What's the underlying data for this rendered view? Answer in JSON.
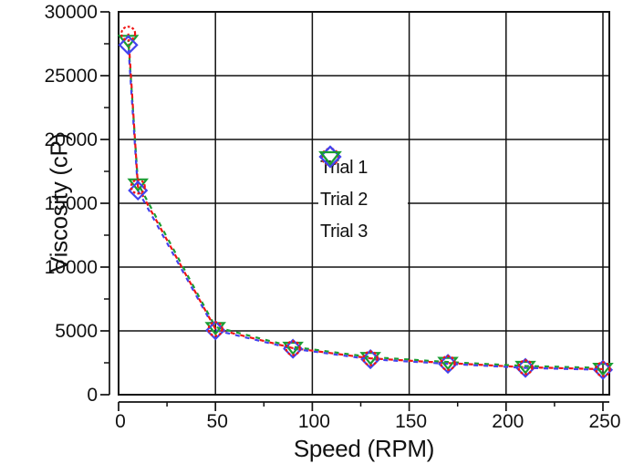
{
  "chart_data": {
    "type": "scatter",
    "title": "",
    "xlabel": "Speed (RPM)",
    "ylabel": "Viscosity (cP)",
    "x": [
      5,
      10,
      50,
      90,
      130,
      170,
      210,
      250
    ],
    "series": [
      {
        "name": "Trial 1",
        "marker": "circle",
        "color": "#f01414",
        "values": [
          28300,
          16300,
          5150,
          3650,
          2850,
          2480,
          2150,
          2000
        ]
      },
      {
        "name": "Trial 2",
        "marker": "diamond",
        "color": "#4343ee",
        "values": [
          27400,
          16000,
          5050,
          3600,
          2780,
          2420,
          2100,
          1950
        ]
      },
      {
        "name": "Trial 3",
        "marker": "triangle-down",
        "color": "#1a9e33",
        "values": [
          27800,
          16550,
          5300,
          3750,
          2950,
          2560,
          2250,
          2100
        ]
      }
    ],
    "xlim": [
      0,
      253
    ],
    "ylim": [
      0,
      30000
    ],
    "x_major_ticks": [
      0,
      50,
      100,
      150,
      200,
      250
    ],
    "x_minor_ticks": [
      25,
      75,
      125,
      175,
      225
    ],
    "y_major_ticks": [
      0,
      5000,
      10000,
      15000,
      20000,
      25000,
      30000
    ],
    "y_minor_ticks": [
      2500,
      7500,
      12500,
      17500,
      22500,
      27500
    ],
    "grid": true,
    "line_style": "dashed",
    "legend_position": "inside-center"
  },
  "legend": {
    "items": [
      {
        "label": "Trial 1"
      },
      {
        "label": "Trial 2"
      },
      {
        "label": "Trial 3"
      }
    ]
  },
  "colors": {
    "background": "#ffffff",
    "axis": "#111111",
    "grid": "#111111",
    "trial1": "#f01414",
    "trial2": "#4343ee",
    "trial3": "#1a9e33"
  }
}
